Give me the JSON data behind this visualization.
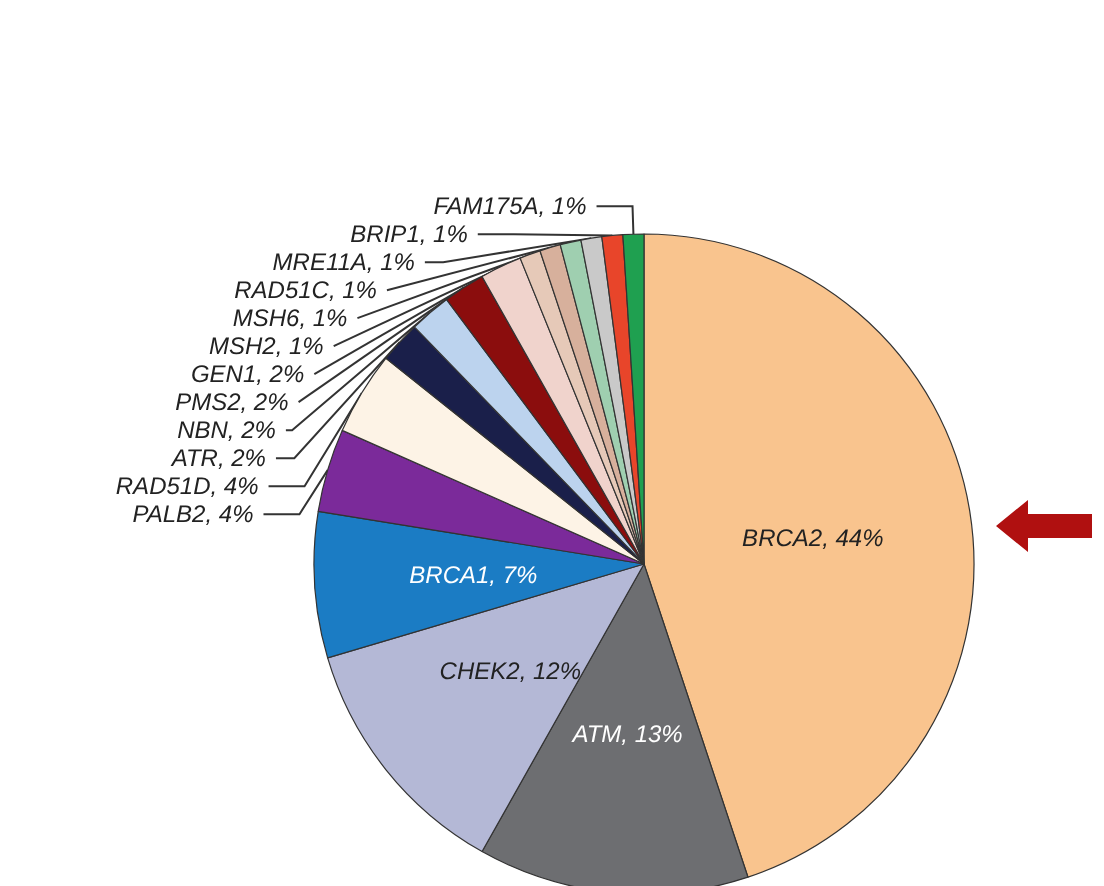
{
  "chart_data": {
    "type": "pie",
    "categories": [
      "BRCA2",
      "ATM",
      "CHEK2",
      "BRCA1",
      "PALB2",
      "RAD51D",
      "ATR",
      "NBN",
      "PMS2",
      "GEN1",
      "MSH2",
      "MSH6",
      "RAD51C",
      "MRE11A",
      "BRIP1",
      "FAM175A"
    ],
    "values": [
      44,
      13,
      12,
      7,
      4,
      4,
      2,
      2,
      2,
      2,
      1,
      1,
      1,
      1,
      1,
      1
    ],
    "value_labels": [
      "44%",
      "13%",
      "12%",
      "7%",
      "4%",
      "4%",
      "2%",
      "2%",
      "2%",
      "2%",
      "1%",
      "1%",
      "1%",
      "1%",
      "1%",
      "1%"
    ],
    "colors": [
      "#f9c48e",
      "#6d6e71",
      "#b4b8d6",
      "#1b7cc4",
      "#7b2a9a",
      "#fdf3e6",
      "#1a1f4a",
      "#bcd3ee",
      "#8b0d0d",
      "#f0d3cc",
      "#e6c9b8",
      "#d7b09c",
      "#9fcfb0",
      "#c9c9c9",
      "#e8452a",
      "#1fa050"
    ],
    "legend": false
  }
}
